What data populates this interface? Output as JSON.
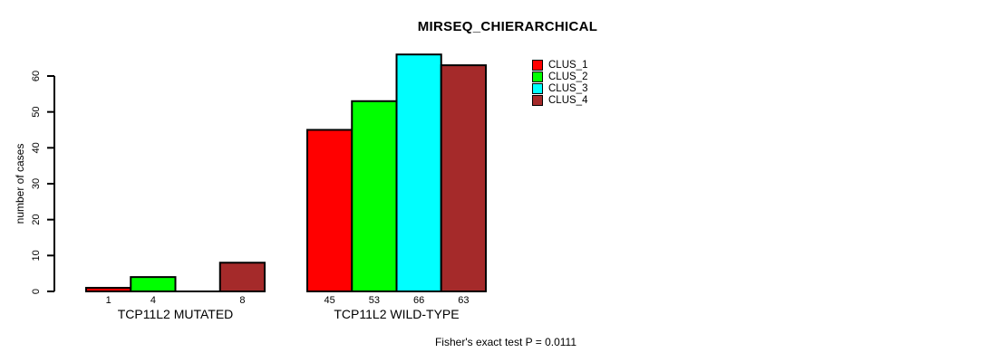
{
  "chart_data": {
    "type": "bar",
    "title": "MIRSEQ_CHIERARCHICAL",
    "ylabel": "number of cases",
    "xlabel": "",
    "ylim": [
      0,
      60
    ],
    "yticks": [
      0,
      10,
      20,
      30,
      40,
      50,
      60
    ],
    "grid": false,
    "legend_position": "top-right",
    "categories": [
      "TCP11L2 MUTATED",
      "TCP11L2 WILD-TYPE"
    ],
    "series": [
      {
        "name": "CLUS_1",
        "color": "#ff0000",
        "values": [
          1,
          45
        ]
      },
      {
        "name": "CLUS_2",
        "color": "#00ff00",
        "values": [
          4,
          53
        ]
      },
      {
        "name": "CLUS_3",
        "color": "#00ffff",
        "values": [
          0,
          66
        ]
      },
      {
        "name": "CLUS_4",
        "color": "#a52a2a",
        "values": [
          8,
          63
        ]
      }
    ],
    "bar_value_labels": [
      [
        "1",
        "4",
        "",
        "8"
      ],
      [
        "45",
        "53",
        "66",
        "63"
      ]
    ],
    "annotation": "Fisher's exact test P = 0.0111",
    "axis_color": "#000000",
    "background_color": "#ffffff"
  }
}
